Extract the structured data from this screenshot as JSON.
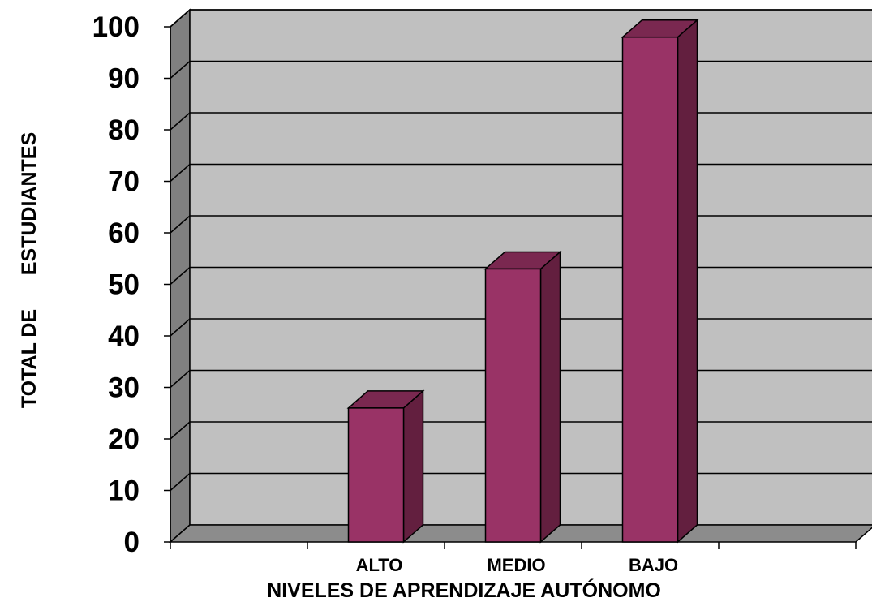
{
  "chart_data": {
    "type": "bar",
    "style": "3d-column",
    "categories": [
      "ALTO",
      "MEDIO",
      "BAJO"
    ],
    "values": [
      26,
      53,
      98
    ],
    "xlabel": "NIVELES DE APRENDIZAJE AUTÓNOMO",
    "ylabel": "TOTAL DE      ESTUDIANTES",
    "ylim": [
      0,
      100
    ],
    "ytick_step": 10,
    "grid": true,
    "legend": "none",
    "colors": {
      "bar_front": "#993366",
      "bar_top": "#7a2850",
      "bar_side": "#631f3f",
      "plot_wall": "#c0c0c0",
      "side_wall": "#808080",
      "floor": "#8c8c8c"
    }
  }
}
